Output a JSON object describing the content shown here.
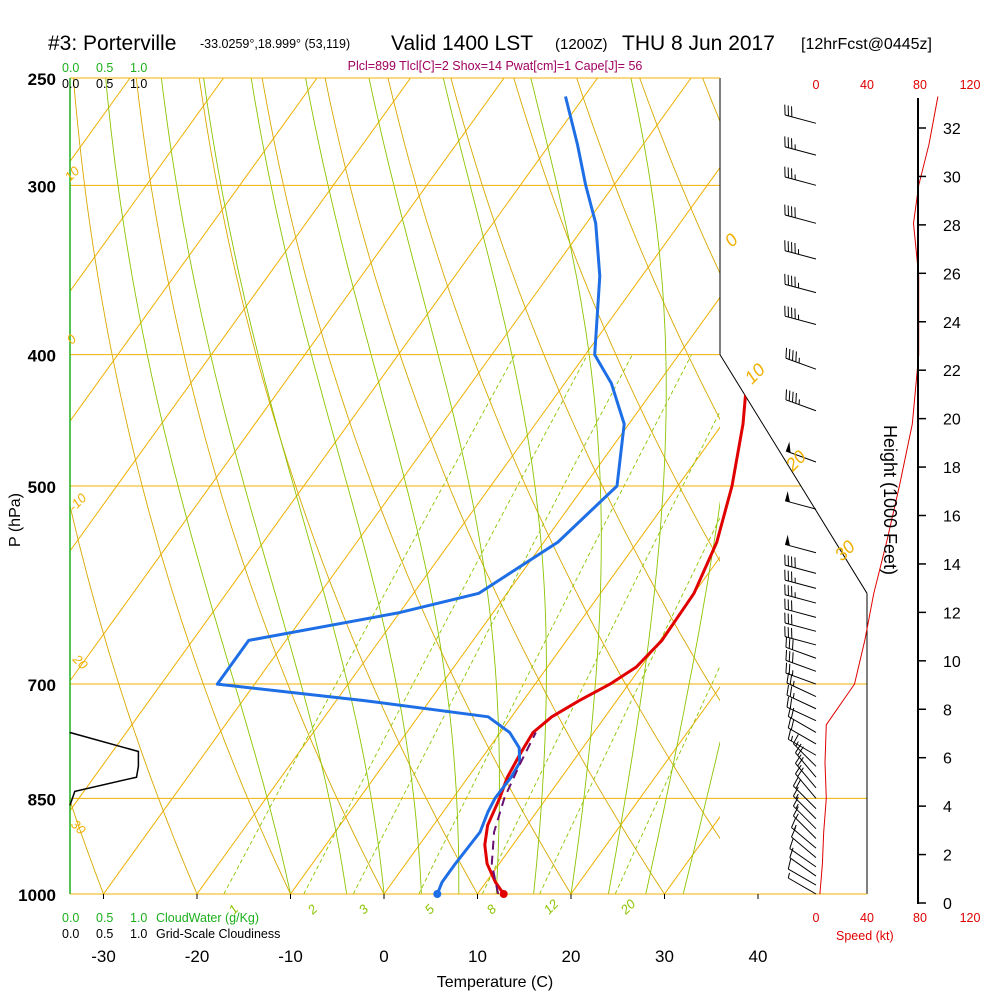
{
  "header": {
    "station": "#3: Porterville",
    "coords": "-33.0259°,18.999° (53,119)",
    "valid": "Valid 1400 LST",
    "utc": "(1200Z)",
    "date": "THU 8 Jun 2017",
    "forecast": "[12hrFcst@0445z]",
    "indices": "Plcl=899 Tlcl[C]=2 Shox=14 Pwat[cm]=1 Cape[J]= 56"
  },
  "colors": {
    "isotherm": "#f0b000",
    "dry_adiabat": "#d9a800",
    "moist_adiabat": "#8cc400",
    "mixing_ratio": "#8cc400",
    "temperature": "#e00000",
    "dewpoint": "#1e6ee6",
    "parcel": "#6a1070",
    "cloud": "#000000",
    "green_scale": "#1cb01c",
    "wind_speed": "#e00000",
    "indices": "#a00060"
  },
  "chart_data": {
    "type": "line",
    "xlabel": "Temperature (C)",
    "ylabel": "P (hPa)",
    "y2label": "Height (1000 Feet)",
    "xlim": [
      -35,
      45
    ],
    "x_ticks": [
      "-30",
      "-20",
      "-10",
      "0",
      "10",
      "20",
      "30",
      "40"
    ],
    "y_ticks": [
      "250",
      "300",
      "400",
      "500",
      "700",
      "850",
      "1000"
    ],
    "height_ticks": [
      "0",
      "2",
      "4",
      "6",
      "8",
      "10",
      "12",
      "14",
      "16",
      "18",
      "20",
      "22",
      "24",
      "26",
      "28",
      "30",
      "32"
    ],
    "series": [
      {
        "key": "temperature",
        "points": [
          [
            1000,
            12.8
          ],
          [
            980,
            11
          ],
          [
            950,
            8.7
          ],
          [
            920,
            7
          ],
          [
            890,
            5.8
          ],
          [
            850,
            5
          ],
          [
            820,
            4.2
          ],
          [
            790,
            3.8
          ],
          [
            760,
            3.5
          ],
          [
            740,
            4.3
          ],
          [
            720,
            6
          ],
          [
            700,
            8
          ],
          [
            680,
            9.5
          ],
          [
            650,
            10.2
          ],
          [
            600,
            10
          ],
          [
            550,
            8.5
          ],
          [
            500,
            5.8
          ],
          [
            450,
            2.2
          ],
          [
            400,
            -2.5
          ],
          [
            350,
            -8.4
          ],
          [
            310,
            -13.2
          ],
          [
            280,
            -15.8
          ],
          [
            258,
            -16.2
          ]
        ]
      },
      {
        "key": "dewpoint",
        "points": [
          [
            1000,
            5.7
          ],
          [
            980,
            5.3
          ],
          [
            950,
            5.3
          ],
          [
            900,
            5.5
          ],
          [
            870,
            4.8
          ],
          [
            850,
            4.5
          ],
          [
            820,
            4.6
          ],
          [
            800,
            4.4
          ],
          [
            780,
            3.2
          ],
          [
            760,
            1
          ],
          [
            740,
            -2.5
          ],
          [
            720,
            -17
          ],
          [
            700,
            -34
          ],
          [
            650,
            -34
          ],
          [
            620,
            -20
          ],
          [
            600,
            -13
          ],
          [
            550,
            -8.5
          ],
          [
            500,
            -6.5
          ],
          [
            450,
            -10.5
          ],
          [
            420,
            -15
          ],
          [
            400,
            -19
          ],
          [
            350,
            -24.5
          ],
          [
            320,
            -29
          ],
          [
            300,
            -33
          ],
          [
            280,
            -37
          ],
          [
            258,
            -42
          ]
        ]
      },
      {
        "key": "parcel",
        "points": [
          [
            1000,
            12.2
          ],
          [
            950,
            9.2
          ],
          [
            900,
            7
          ],
          [
            850,
            5.5
          ],
          [
            800,
            4.5
          ],
          [
            760,
            3.8
          ]
        ]
      }
    ],
    "cloudiness": [
      [
        760,
        0
      ],
      [
        785,
        0.72
      ],
      [
        805,
        0.72
      ],
      [
        820,
        0.7
      ],
      [
        840,
        0.05
      ],
      [
        860,
        0
      ]
    ],
    "wind_barbs": [
      {
        "p": 1000,
        "spd": 5,
        "dir": 300
      },
      {
        "p": 985,
        "spd": 10,
        "dir": 300
      },
      {
        "p": 970,
        "spd": 10,
        "dir": 305
      },
      {
        "p": 955,
        "spd": 10,
        "dir": 305
      },
      {
        "p": 940,
        "spd": 10,
        "dir": 310
      },
      {
        "p": 925,
        "spd": 15,
        "dir": 310
      },
      {
        "p": 910,
        "spd": 15,
        "dir": 315
      },
      {
        "p": 895,
        "spd": 15,
        "dir": 315
      },
      {
        "p": 880,
        "spd": 15,
        "dir": 315
      },
      {
        "p": 865,
        "spd": 20,
        "dir": 315
      },
      {
        "p": 850,
        "spd": 20,
        "dir": 320
      },
      {
        "p": 835,
        "spd": 20,
        "dir": 320
      },
      {
        "p": 820,
        "spd": 20,
        "dir": 320
      },
      {
        "p": 805,
        "spd": 15,
        "dir": 315
      },
      {
        "p": 790,
        "spd": 15,
        "dir": 300
      },
      {
        "p": 775,
        "spd": 20,
        "dir": 300
      },
      {
        "p": 760,
        "spd": 20,
        "dir": 300
      },
      {
        "p": 745,
        "spd": 20,
        "dir": 295
      },
      {
        "p": 730,
        "spd": 25,
        "dir": 295
      },
      {
        "p": 715,
        "spd": 25,
        "dir": 295
      },
      {
        "p": 700,
        "spd": 25,
        "dir": 290
      },
      {
        "p": 685,
        "spd": 30,
        "dir": 290
      },
      {
        "p": 670,
        "spd": 30,
        "dir": 290
      },
      {
        "p": 655,
        "spd": 30,
        "dir": 285
      },
      {
        "p": 640,
        "spd": 30,
        "dir": 285
      },
      {
        "p": 625,
        "spd": 30,
        "dir": 285
      },
      {
        "p": 610,
        "spd": 35,
        "dir": 285
      },
      {
        "p": 595,
        "spd": 35,
        "dir": 285
      },
      {
        "p": 580,
        "spd": 40,
        "dir": 285
      },
      {
        "p": 560,
        "spd": 50,
        "dir": 285
      },
      {
        "p": 520,
        "spd": 50,
        "dir": 285
      },
      {
        "p": 480,
        "spd": 50,
        "dir": 290
      },
      {
        "p": 440,
        "spd": 45,
        "dir": 290
      },
      {
        "p": 410,
        "spd": 45,
        "dir": 290
      },
      {
        "p": 380,
        "spd": 45,
        "dir": 285
      },
      {
        "p": 360,
        "spd": 45,
        "dir": 285
      },
      {
        "p": 340,
        "spd": 45,
        "dir": 285
      },
      {
        "p": 320,
        "spd": 40,
        "dir": 285
      },
      {
        "p": 300,
        "spd": 35,
        "dir": 285
      },
      {
        "p": 285,
        "spd": 35,
        "dir": 285
      },
      {
        "p": 270,
        "spd": 30,
        "dir": 285
      }
    ],
    "wind_speed_profile": [
      [
        1000,
        3
      ],
      [
        950,
        5
      ],
      [
        900,
        6
      ],
      [
        850,
        8
      ],
      [
        800,
        7
      ],
      [
        750,
        8
      ],
      [
        700,
        30
      ],
      [
        650,
        38
      ],
      [
        600,
        45
      ],
      [
        550,
        55
      ],
      [
        500,
        65
      ],
      [
        450,
        75
      ],
      [
        400,
        80
      ],
      [
        350,
        80
      ],
      [
        320,
        76
      ],
      [
        300,
        80
      ],
      [
        280,
        88
      ],
      [
        258,
        95
      ]
    ],
    "speed_scale": [
      "0",
      "40",
      "80",
      "120"
    ],
    "speed_label": "Speed (kt)",
    "cloud_scale": [
      "0.0",
      "0.5",
      "1.0"
    ],
    "cloudwater_label": "CloudWater (g/Kg)",
    "cloudiness_label": "Grid-Scale Cloudiness",
    "mixing_ratio_labels": [
      "1",
      "2",
      "3",
      "5",
      "8",
      "12",
      "20"
    ],
    "dry_adiabat_labels": [
      "10",
      "0",
      "-10",
      "20",
      "30"
    ],
    "wind_chart_labels": [
      "0",
      "10",
      "20",
      "30"
    ]
  }
}
